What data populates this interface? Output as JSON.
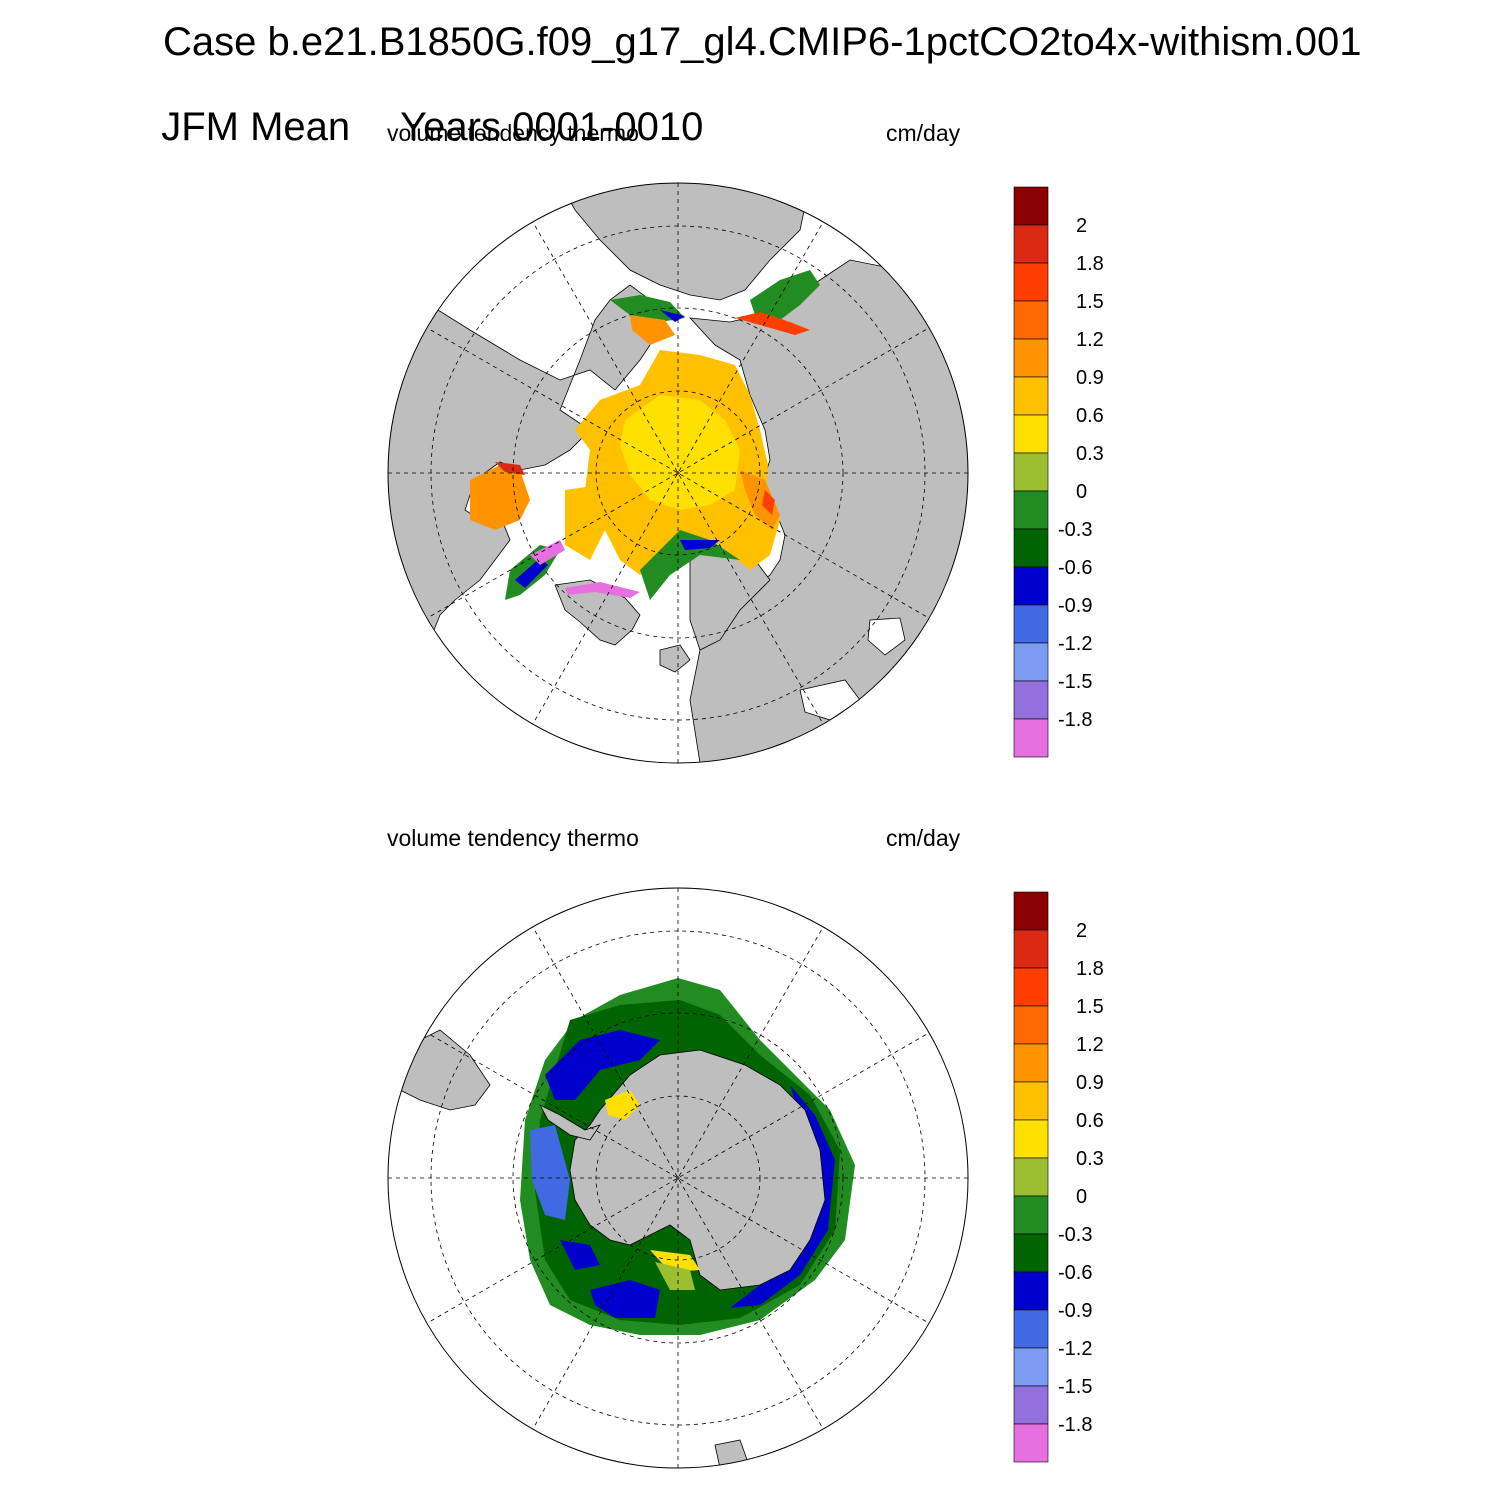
{
  "title": {
    "line1": "Case b.e21.B1850G.f09_g17_gl4.CMIP6-1pctCO2to4x-withism.001",
    "line2_left": "JFM Mean",
    "line2_right": "Years 0001-0010"
  },
  "colors": {
    "land": "#bebebe",
    "ocean": "#ffffff",
    "levels": [
      "#8b0000",
      "#db2a14",
      "#ff3e00",
      "#ff6a00",
      "#ff9400",
      "#ffc000",
      "#ffe000",
      "#9cbf32",
      "#228b22",
      "#006400",
      "#0000cd",
      "#4169e1",
      "#7b9cf0",
      "#9370db",
      "#e670e0"
    ]
  },
  "colorbar": {
    "labels": [
      "2",
      "1.8",
      "1.5",
      "1.2",
      "0.9",
      "0.6",
      "0.3",
      "0",
      "-0.3",
      "-0.6",
      "-0.9",
      "-1.2",
      "-1.5",
      "-1.8"
    ]
  },
  "panels": [
    {
      "id": "north",
      "hemisphere": "NH",
      "variable_label": "volume tendency thermo",
      "units_label": "cm/day"
    },
    {
      "id": "south",
      "hemisphere": "SH",
      "variable_label": "volume tendency thermo",
      "units_label": "cm/day"
    }
  ]
}
